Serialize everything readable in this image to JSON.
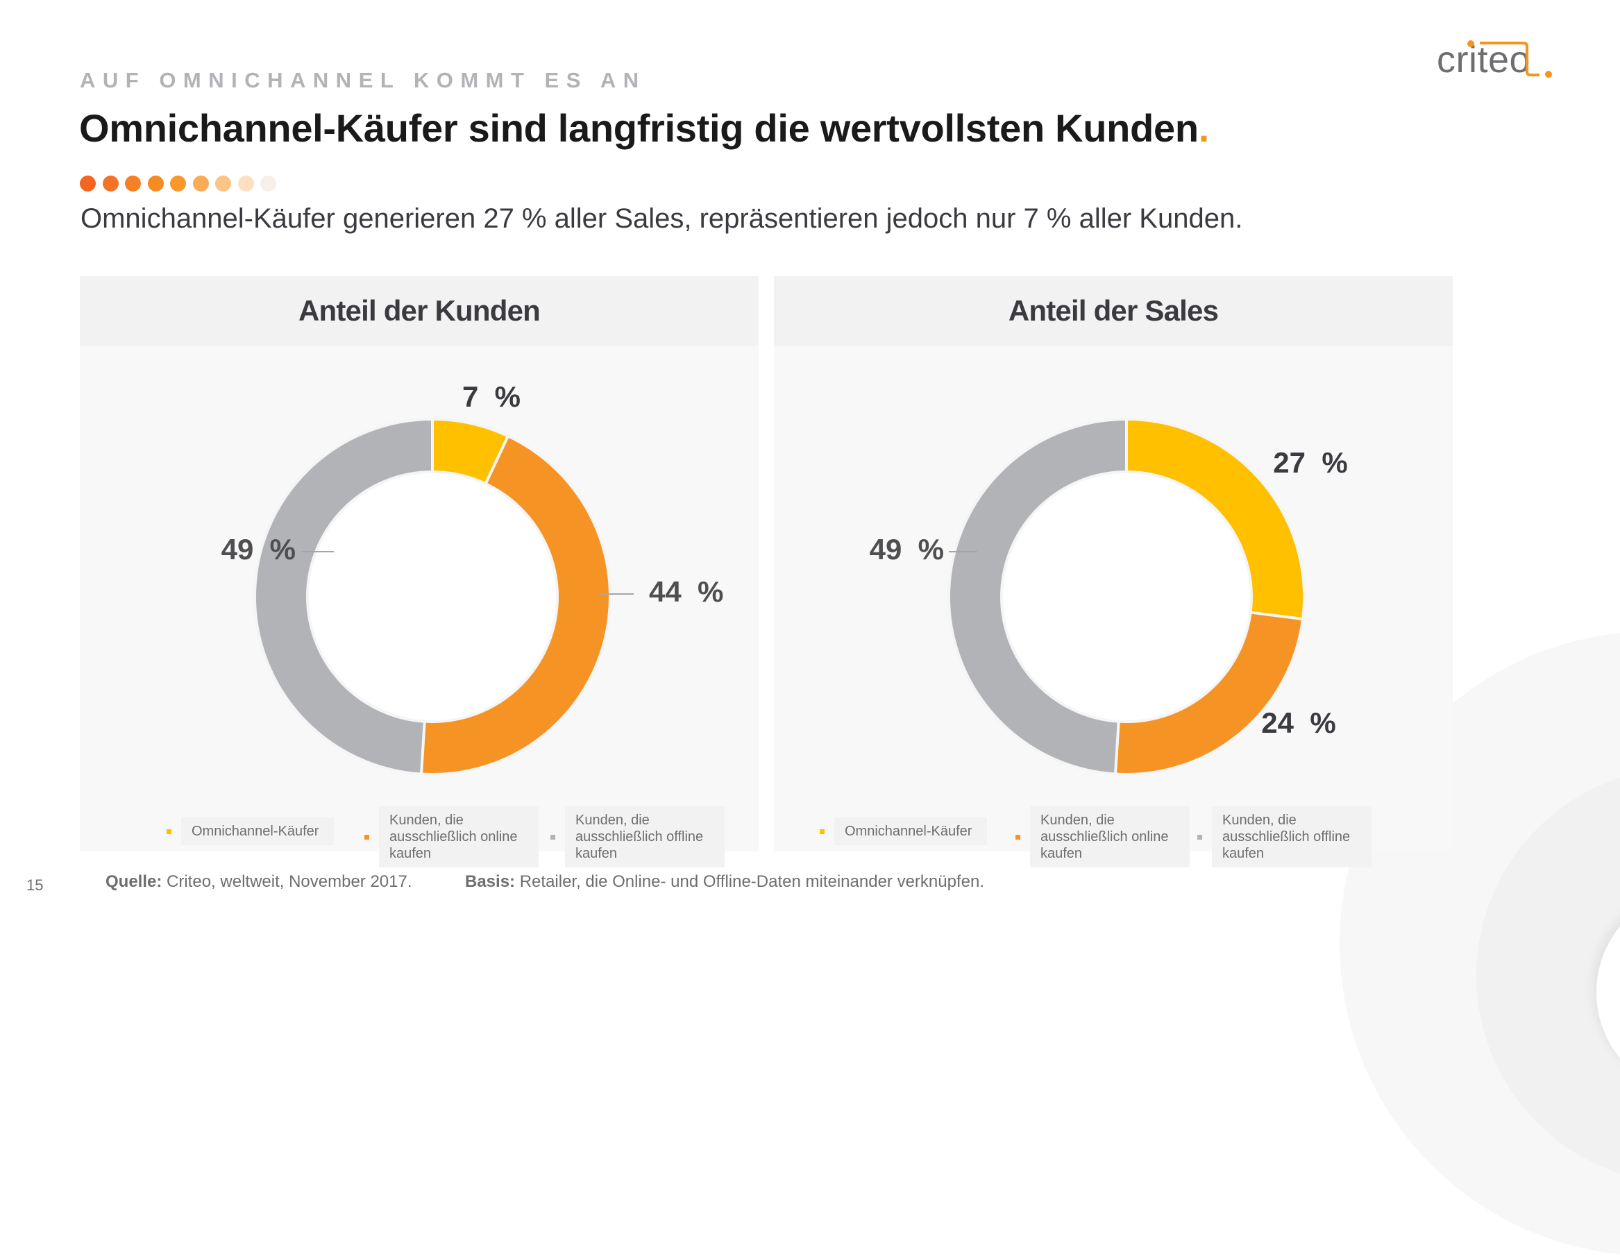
{
  "header": {
    "kicker": "AUF OMNICHANNEL KOMMT ES AN",
    "title": "Omnichannel-Käufer sind langfristig die wertvollsten Kunden",
    "title_punct": ".",
    "subtitle": "Omnichannel-Käufer generieren 27 % aller Sales, repräsentieren jedoch nur 7 % aller Kunden.",
    "dot_colors": [
      "#f26522",
      "#f37325",
      "#f58025",
      "#f68b24",
      "#f7982c",
      "#f9ac55",
      "#fcc585",
      "#fde0c0",
      "#f8efe8"
    ]
  },
  "logo": {
    "text": "criteo",
    "accent": "#f7941d",
    "text_color": "#6d6e71"
  },
  "colors": {
    "omni": "#ffc000",
    "online": "#f59425",
    "offline": "#b2b3b7"
  },
  "chart_data": [
    {
      "type": "pie",
      "variant": "donut",
      "title": "Anteil der Kunden",
      "categories": [
        "Omnichannel-Käufer",
        "Kunden, die ausschließlich online kaufen",
        "Kunden, die ausschließlich offline kaufen"
      ],
      "values": [
        7,
        44,
        49
      ],
      "labels": [
        "7  %",
        "44  %",
        "49  %"
      ],
      "unit": "%",
      "legend": "bottom"
    },
    {
      "type": "pie",
      "variant": "donut",
      "title": "Anteil der Sales",
      "categories": [
        "Omnichannel-Käufer",
        "Kunden, die ausschließlich online kaufen",
        "Kunden, die ausschließlich offline kaufen"
      ],
      "values": [
        27,
        24,
        49
      ],
      "labels": [
        "27  %",
        "24  %",
        "49  %"
      ],
      "unit": "%",
      "legend": "bottom"
    }
  ],
  "legend": {
    "items": [
      {
        "lines": [
          "Omnichannel-Käufer"
        ]
      },
      {
        "lines": [
          "Kunden, die",
          "ausschließlich online",
          "kaufen"
        ]
      },
      {
        "lines": [
          "Kunden, die",
          "ausschließlich offline",
          "kaufen"
        ]
      }
    ]
  },
  "footer": {
    "page_number": "15",
    "source_label": "Quelle:",
    "source_text": " Criteo, weltweit, November 2017.",
    "basis_label": "Basis:",
    "basis_text": " Retailer, die Online- und Offline-Daten miteinander verknüpfen."
  }
}
